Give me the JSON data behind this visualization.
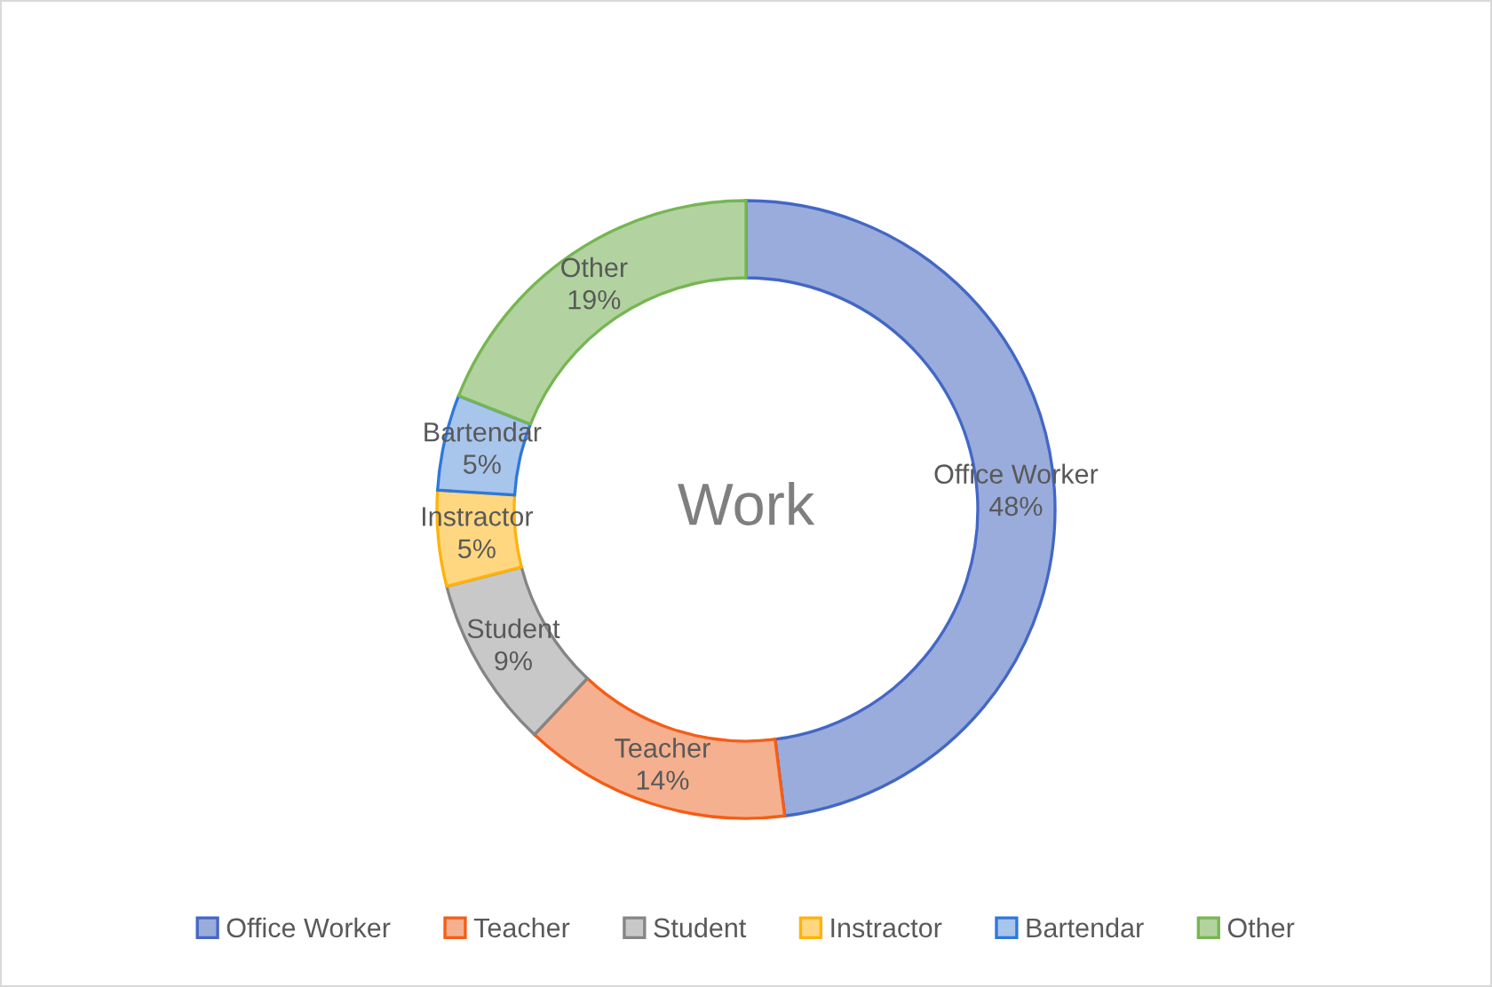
{
  "chart_data": {
    "type": "donut",
    "title": "Work",
    "categories": [
      "Office Worker",
      "Teacher",
      "Student",
      "Instractor",
      "Bartendar",
      "Other"
    ],
    "values": [
      48,
      14,
      9,
      5,
      5,
      19
    ],
    "colors": [
      "#9aacdc",
      "#f5b08f",
      "#c8c8c8",
      "#ffd780",
      "#a8c5ec",
      "#b2d3a0"
    ],
    "value_labels": [
      "48%",
      "14%",
      "9%",
      "5%",
      "5%",
      "19%"
    ],
    "legend": "bottom"
  }
}
